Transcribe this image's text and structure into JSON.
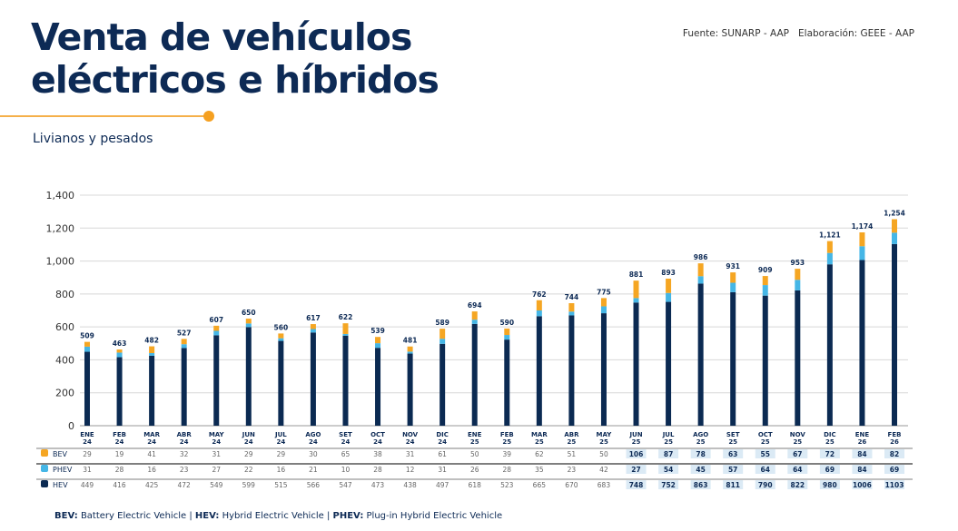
{
  "header": {
    "title_line1": "Venta de vehículos",
    "title_line2": "eléctricos e híbridos",
    "subtitle": "Livianos y pesados",
    "source": "Fuente: SUNARP - AAP   Elaboración: GEEE - AAP"
  },
  "footer": {
    "bev_abbr": "BEV:",
    "bev_full": "Battery Electric Vehicle",
    "hev_abbr": "HEV:",
    "hev_full": "Hybrid Electric Vehicle",
    "phev_abbr": "PHEV:",
    "phev_full": "Plug-in Hybrid Electric Vehicle",
    "sep": "|"
  },
  "chart_data": {
    "type": "bar",
    "stacked": true,
    "ylim": [
      0,
      1400
    ],
    "yticks": [
      "0",
      "200",
      "400",
      "600",
      "800",
      "1,000",
      "1,200",
      "1,400"
    ],
    "grid": true,
    "legend": "table-left",
    "categories": [
      [
        "ENE",
        "24"
      ],
      [
        "FEB",
        "24"
      ],
      [
        "MAR",
        "24"
      ],
      [
        "ABR",
        "24"
      ],
      [
        "MAY",
        "24"
      ],
      [
        "JUN",
        "24"
      ],
      [
        "JUL",
        "24"
      ],
      [
        "AGO",
        "24"
      ],
      [
        "SET",
        "24"
      ],
      [
        "OCT",
        "24"
      ],
      [
        "NOV",
        "24"
      ],
      [
        "DIC",
        "24"
      ],
      [
        "ENE",
        "25"
      ],
      [
        "FEB",
        "25"
      ],
      [
        "MAR",
        "25"
      ],
      [
        "ABR",
        "25"
      ],
      [
        "MAY",
        "25"
      ],
      [
        "JUN",
        "25"
      ],
      [
        "JUL",
        "25"
      ],
      [
        "AGO",
        "25"
      ],
      [
        "SET",
        "25"
      ],
      [
        "OCT",
        "25"
      ],
      [
        "NOV",
        "25"
      ],
      [
        "DIC",
        "25"
      ],
      [
        "ENE",
        "26"
      ],
      [
        "FEB",
        "26"
      ]
    ],
    "totals": [
      "509",
      "463",
      "482",
      "527",
      "607",
      "650",
      "560",
      "617",
      "622",
      "539",
      "481",
      "589",
      "694",
      "590",
      "762",
      "744",
      "775",
      "881",
      "893",
      "986",
      "931",
      "909",
      "953",
      "1,121",
      "1,174",
      "1,254"
    ],
    "series": [
      {
        "name": "HEV",
        "color": "#0b2a52",
        "values": [
          449,
          416,
          425,
          472,
          549,
          599,
          515,
          566,
          547,
          473,
          438,
          497,
          618,
          523,
          665,
          670,
          683,
          748,
          752,
          863,
          811,
          790,
          822,
          980,
          1006,
          1103
        ],
        "labels": [
          "449",
          "416",
          "425",
          "472",
          "549",
          "599",
          "515",
          "566",
          "547",
          "473",
          "438",
          "497",
          "618",
          "523",
          "665",
          "670",
          "683",
          "748",
          "752",
          "863",
          "811",
          "790",
          "822",
          "980",
          "1006",
          "1103"
        ]
      },
      {
        "name": "PHEV",
        "color": "#45b6e6",
        "values": [
          31,
          28,
          16,
          23,
          27,
          22,
          16,
          21,
          10,
          28,
          12,
          31,
          26,
          28,
          35,
          23,
          42,
          27,
          54,
          45,
          57,
          64,
          64,
          69,
          84,
          69
        ]
      },
      {
        "name": "BEV",
        "color": "#f5a623",
        "values": [
          29,
          19,
          41,
          32,
          31,
          29,
          29,
          30,
          65,
          38,
          31,
          61,
          50,
          39,
          62,
          51,
          50,
          106,
          87,
          78,
          63,
          55,
          67,
          72,
          84,
          82
        ]
      }
    ],
    "table_rows": [
      "BEV",
      "PHEV",
      "HEV"
    ]
  }
}
